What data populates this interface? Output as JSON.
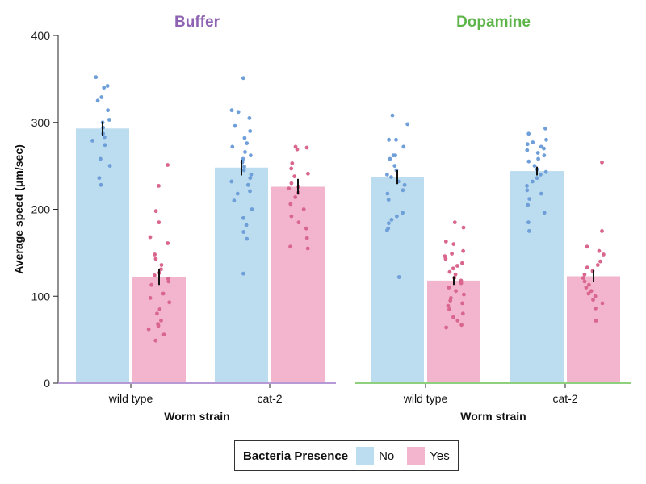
{
  "chart_data": {
    "type": "bar",
    "ylabel": "Average speed (μm/sec)",
    "ylim": [
      0,
      400
    ],
    "yticks": [
      "0",
      "100",
      "200",
      "300",
      "400"
    ],
    "categories": [
      "wild type",
      "cat-2"
    ],
    "xlabel": "Worm strain",
    "legend": {
      "title": "Bacteria Presence",
      "entries": [
        {
          "label": "No",
          "color": "#bcdcf0"
        },
        {
          "label": "Yes",
          "color": "#f2b5cd"
        }
      ]
    },
    "point_colors": {
      "No": "#6f9fd8",
      "Yes": "#d9668e"
    },
    "panels": [
      {
        "title": "Buffer",
        "title_color": "#8e63b2",
        "axis_color": "#b59ad6",
        "groups": [
          {
            "category": "wild type",
            "bars": [
              {
                "series": "No",
                "value": 293,
                "err": 8,
                "points": [
                  352,
                  342,
                  340,
                  329,
                  325,
                  303,
                  314,
                  300,
                  294,
                  287,
                  279,
                  283,
                  274,
                  258,
                  250,
                  236,
                  228
                ]
              },
              {
                "series": "Yes",
                "value": 122,
                "err": 9,
                "points": [
                  251,
                  227,
                  198,
                  185,
                  168,
                  161,
                  148,
                  143,
                  136,
                  131,
                  127,
                  124,
                  120,
                  117,
                  113,
                  103,
                  98,
                  93,
                  85,
                  80,
                  72,
                  68,
                  66,
                  62,
                  56,
                  49
                ]
              }
            ]
          },
          {
            "category": "cat-2",
            "bars": [
              {
                "series": "No",
                "value": 248,
                "err": 9,
                "points": [
                  351,
                  314,
                  312,
                  305,
                  296,
                  290,
                  282,
                  276,
                  272,
                  266,
                  262,
                  258,
                  254,
                  249,
                  245,
                  240,
                  236,
                  232,
                  228,
                  221,
                  218,
                  210,
                  200,
                  190,
                  182,
                  174,
                  166,
                  126
                ]
              },
              {
                "series": "Yes",
                "value": 226,
                "err": 9,
                "points": [
                  272,
                  271,
                  269,
                  253,
                  247,
                  241,
                  238,
                  230,
                  226,
                  224,
                  219,
                  214,
                  206,
                  200,
                  192,
                  185,
                  178,
                  167,
                  157,
                  155
                ]
              }
            ]
          }
        ]
      },
      {
        "title": "Dopamine",
        "title_color": "#5db54a",
        "axis_color": "#8fd07f",
        "groups": [
          {
            "category": "wild type",
            "bars": [
              {
                "series": "No",
                "value": 237,
                "err": 8,
                "points": [
                  308,
                  298,
                  280,
                  280,
                  272,
                  262,
                  262,
                  258,
                  250,
                  245,
                  240,
                  237,
                  232,
                  228,
                  222,
                  218,
                  211,
                  196,
                  192,
                  188,
                  184,
                  178,
                  176,
                  122
                ]
              },
              {
                "series": "Yes",
                "value": 118,
                "err": 5,
                "points": [
                  185,
                  179,
                  163,
                  160,
                  152,
                  149,
                  146,
                  143,
                  138,
                  135,
                  132,
                  128,
                  125,
                  121,
                  118,
                  115,
                  110,
                  106,
                  102,
                  98,
                  95,
                  92,
                  89,
                  85,
                  80,
                  76,
                  72,
                  67,
                  64
                ]
              }
            ]
          },
          {
            "category": "cat-2",
            "bars": [
              {
                "series": "No",
                "value": 244,
                "err": 5,
                "points": [
                  293,
                  287,
                  280,
                  277,
                  275,
                  272,
                  270,
                  268,
                  265,
                  262,
                  258,
                  255,
                  250,
                  246,
                  243,
                  240,
                  236,
                  232,
                  227,
                  222,
                  218,
                  212,
                  205,
                  196,
                  185,
                  175
                ]
              },
              {
                "series": "Yes",
                "value": 123,
                "err": 7,
                "points": [
                  254,
                  175,
                  157,
                  152,
                  148,
                  140,
                  136,
                  133,
                  129,
                  125,
                  121,
                  117,
                  113,
                  110,
                  106,
                  103,
                  100,
                  96,
                  92,
                  86,
                  72,
                  72
                ]
              }
            ]
          }
        ]
      }
    ]
  }
}
